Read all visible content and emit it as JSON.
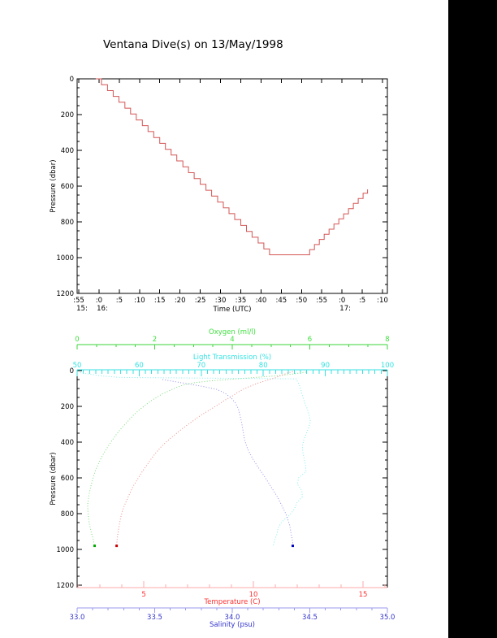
{
  "title": "Ventana Dive(s) on 13/May/1998",
  "page": {
    "background": "#ffffff",
    "right_strip_color": "#000000",
    "axis_black": "#000000"
  },
  "chart_data": [
    {
      "type": "line",
      "name": "dive-depth-vs-time",
      "xlabel": "Time (UTC)",
      "ylabel": "Pressure (dbar)",
      "grid": false,
      "legend": "none",
      "line_style": "steps",
      "line_color": "#d45555",
      "x_domain_minutes_after_1500": [
        54.6,
        131.2
      ],
      "x_ticks": [
        {
          "m": 55,
          "label": ":55",
          "hour": "15:"
        },
        {
          "m": 60,
          "label": ":0",
          "hour": "16:"
        },
        {
          "m": 65,
          "label": ":5"
        },
        {
          "m": 70,
          "label": ":10"
        },
        {
          "m": 75,
          "label": ":15"
        },
        {
          "m": 80,
          "label": ":20"
        },
        {
          "m": 85,
          "label": ":25"
        },
        {
          "m": 90,
          "label": ":30"
        },
        {
          "m": 95,
          "label": ":35"
        },
        {
          "m": 100,
          "label": ":40"
        },
        {
          "m": 105,
          "label": ":45"
        },
        {
          "m": 110,
          "label": ":50"
        },
        {
          "m": 115,
          "label": ":55"
        },
        {
          "m": 120,
          "label": ":0",
          "hour": "17:"
        },
        {
          "m": 125,
          "label": ":5"
        },
        {
          "m": 130,
          "label": ":10"
        }
      ],
      "ylim": [
        0,
        1200
      ],
      "y_ticks": [
        0,
        200,
        400,
        600,
        800,
        1000,
        1200
      ],
      "y_minor_step": 50,
      "series": [
        {
          "name": "pressure_profile",
          "color": "#d45555",
          "points_minute_dbar": [
            [
              59.2,
              0
            ],
            [
              60.6,
              33
            ],
            [
              62.1,
              66
            ],
            [
              63.5,
              98
            ],
            [
              64.9,
              131
            ],
            [
              66.4,
              164
            ],
            [
              67.8,
              197
            ],
            [
              69.2,
              230
            ],
            [
              70.7,
              262
            ],
            [
              72.1,
              295
            ],
            [
              73.5,
              328
            ],
            [
              75.0,
              361
            ],
            [
              76.4,
              394
            ],
            [
              77.8,
              426
            ],
            [
              79.2,
              459
            ],
            [
              80.7,
              492
            ],
            [
              82.1,
              525
            ],
            [
              83.5,
              558
            ],
            [
              85.0,
              590
            ],
            [
              86.4,
              623
            ],
            [
              87.8,
              656
            ],
            [
              89.3,
              689
            ],
            [
              90.7,
              722
            ],
            [
              92.1,
              754
            ],
            [
              93.5,
              787
            ],
            [
              95.0,
              820
            ],
            [
              96.4,
              853
            ],
            [
              97.8,
              886
            ],
            [
              99.3,
              918
            ],
            [
              100.7,
              951
            ],
            [
              102.1,
              984
            ],
            [
              110.8,
              984
            ],
            [
              112.0,
              955
            ],
            [
              113.2,
              927
            ],
            [
              114.4,
              898
            ],
            [
              115.6,
              869
            ],
            [
              116.8,
              841
            ],
            [
              118.0,
              812
            ],
            [
              119.2,
              783
            ],
            [
              120.4,
              755
            ],
            [
              121.6,
              726
            ],
            [
              122.8,
              697
            ],
            [
              124.0,
              669
            ],
            [
              125.2,
              640
            ],
            [
              126.3,
              618
            ]
          ]
        }
      ]
    },
    {
      "type": "line",
      "name": "ctd-profiles-vs-pressure",
      "ylabel": "Pressure (dbar)",
      "grid": false,
      "legend": "none",
      "ylim": [
        0,
        1200
      ],
      "y_ticks": [
        0,
        200,
        400,
        600,
        800,
        1000,
        1200
      ],
      "y_minor_step": 50,
      "axes": [
        {
          "id": "oxygen",
          "label": "Oxygen (ml/l)",
          "axis_color": "#3bd43b",
          "label_color": "#3fe03f",
          "domain": [
            0,
            8
          ],
          "minor_step": 0.5,
          "major_ticks": [
            {
              "v": 0,
              "label": "0"
            },
            {
              "v": 2,
              "label": "2"
            },
            {
              "v": 4,
              "label": "4"
            },
            {
              "v": 6,
              "label": "6"
            },
            {
              "v": 8,
              "label": "8"
            }
          ]
        },
        {
          "id": "light_transmission",
          "label": "Light Transmission (%)",
          "axis_color": "#35e2e2",
          "label_color": "#35e2e2",
          "domain": [
            50,
            100
          ],
          "minor_step": 1,
          "major_ticks": [
            {
              "v": 50,
              "label": "50"
            },
            {
              "v": 60,
              "label": "60"
            },
            {
              "v": 70,
              "label": "70"
            },
            {
              "v": 80,
              "label": "80"
            },
            {
              "v": 90,
              "label": "90"
            },
            {
              "v": 100,
              "label": "100"
            }
          ]
        },
        {
          "id": "temperature",
          "label": "Temperature (C)",
          "axis_color": "#ffaaaa",
          "label_color": "#ff3030",
          "domain": [
            1.96,
            16.11
          ],
          "minor_step": 1,
          "major_ticks": [
            {
              "v": 5,
              "label": "5"
            },
            {
              "v": 10,
              "label": "10"
            },
            {
              "v": 15,
              "label": "15"
            }
          ]
        },
        {
          "id": "salinity",
          "label": "Salinity (psu)",
          "axis_color": "#9a9aec",
          "label_color": "#3232cc",
          "domain": [
            33,
            35
          ],
          "minor_step": 0.1,
          "major_ticks": [
            {
              "v": 33,
              "label": "33.0"
            },
            {
              "v": 33.5,
              "label": "33.5"
            },
            {
              "v": 34,
              "label": "34.0"
            },
            {
              "v": 34.5,
              "label": "34.5"
            },
            {
              "v": 35,
              "label": "35.0"
            }
          ]
        }
      ],
      "series": [
        {
          "name": "oxygen",
          "axis": "oxygen",
          "color": "#7cdc7c",
          "end_marker": true,
          "marker_color": "#00aa00",
          "points_value_dbar": [
            [
              5.9,
              8
            ],
            [
              5.6,
              18
            ],
            [
              5.2,
              28
            ],
            [
              4.6,
              38
            ],
            [
              4.0,
              48
            ],
            [
              3.4,
              58
            ],
            [
              3.0,
              68
            ],
            [
              2.75,
              80
            ],
            [
              2.55,
              95
            ],
            [
              2.4,
              110
            ],
            [
              2.2,
              130
            ],
            [
              2.05,
              150
            ],
            [
              1.9,
              170
            ],
            [
              1.75,
              195
            ],
            [
              1.6,
              220
            ],
            [
              1.45,
              250
            ],
            [
              1.3,
              285
            ],
            [
              1.15,
              320
            ],
            [
              1.0,
              360
            ],
            [
              0.87,
              400
            ],
            [
              0.75,
              440
            ],
            [
              0.64,
              480
            ],
            [
              0.55,
              520
            ],
            [
              0.47,
              560
            ],
            [
              0.41,
              600
            ],
            [
              0.35,
              650
            ],
            [
              0.3,
              700
            ],
            [
              0.27,
              750
            ],
            [
              0.28,
              800
            ],
            [
              0.31,
              850
            ],
            [
              0.36,
              900
            ],
            [
              0.42,
              950
            ],
            [
              0.45,
              980
            ]
          ]
        },
        {
          "name": "light_transmission",
          "axis": "light_transmission",
          "color": "#86ecec",
          "end_marker": false,
          "marker_color": "#00cccc",
          "points_value_dbar": [
            [
              50.5,
              12
            ],
            [
              52,
              20
            ],
            [
              54,
              30
            ],
            [
              57,
              38
            ],
            [
              70,
              42
            ],
            [
              85.3,
              46
            ],
            [
              85.5,
              60
            ],
            [
              85.8,
              80
            ],
            [
              86,
              100
            ],
            [
              86.2,
              125
            ],
            [
              86.4,
              150
            ],
            [
              86.7,
              180
            ],
            [
              87.1,
              215
            ],
            [
              87.4,
              250
            ],
            [
              87.6,
              285
            ],
            [
              87.3,
              320
            ],
            [
              86.9,
              355
            ],
            [
              86.5,
              390
            ],
            [
              86.3,
              425
            ],
            [
              86.4,
              460
            ],
            [
              86.6,
              495
            ],
            [
              86.8,
              530
            ],
            [
              86.9,
              565
            ],
            [
              85.7,
              600
            ],
            [
              85.5,
              635
            ],
            [
              86.2,
              670
            ],
            [
              86.3,
              705
            ],
            [
              85.4,
              740
            ],
            [
              85,
              775
            ],
            [
              84.2,
              810
            ],
            [
              83,
              845
            ],
            [
              82.4,
              880
            ],
            [
              82.2,
              915
            ],
            [
              81.8,
              950
            ],
            [
              81.6,
              980
            ]
          ]
        },
        {
          "name": "temperature",
          "axis": "temperature",
          "color": "#ee8c8c",
          "end_marker": true,
          "marker_color": "#cc0000",
          "points_value_dbar": [
            [
              11.8,
              5
            ],
            [
              11.6,
              12
            ],
            [
              11.3,
              25
            ],
            [
              11.0,
              40
            ],
            [
              10.6,
              55
            ],
            [
              10.2,
              70
            ],
            [
              9.9,
              85
            ],
            [
              9.6,
              100
            ],
            [
              9.3,
              120
            ],
            [
              9.0,
              145
            ],
            [
              8.7,
              165
            ],
            [
              8.4,
              190
            ],
            [
              8.0,
              220
            ],
            [
              7.6,
              250
            ],
            [
              7.2,
              285
            ],
            [
              6.8,
              320
            ],
            [
              6.45,
              355
            ],
            [
              6.1,
              390
            ],
            [
              5.8,
              425
            ],
            [
              5.55,
              460
            ],
            [
              5.3,
              500
            ],
            [
              5.1,
              535
            ],
            [
              4.9,
              570
            ],
            [
              4.7,
              610
            ],
            [
              4.5,
              650
            ],
            [
              4.35,
              690
            ],
            [
              4.2,
              730
            ],
            [
              4.05,
              775
            ],
            [
              3.95,
              820
            ],
            [
              3.88,
              865
            ],
            [
              3.82,
              910
            ],
            [
              3.78,
              950
            ],
            [
              3.76,
              980
            ]
          ]
        },
        {
          "name": "salinity",
          "axis": "salinity",
          "color": "#9292ea",
          "end_marker": true,
          "marker_color": "#0000bb",
          "points_value_dbar": [
            [
              33.55,
              50
            ],
            [
              33.62,
              60
            ],
            [
              33.72,
              75
            ],
            [
              33.82,
              90
            ],
            [
              33.9,
              105
            ],
            [
              33.95,
              125
            ],
            [
              33.99,
              150
            ],
            [
              34.02,
              180
            ],
            [
              34.04,
              215
            ],
            [
              34.05,
              250
            ],
            [
              34.06,
              290
            ],
            [
              34.07,
              340
            ],
            [
              34.08,
              390
            ],
            [
              34.1,
              440
            ],
            [
              34.13,
              490
            ],
            [
              34.17,
              545
            ],
            [
              34.21,
              595
            ],
            [
              34.25,
              650
            ],
            [
              34.29,
              705
            ],
            [
              34.32,
              755
            ],
            [
              34.35,
              810
            ],
            [
              34.37,
              865
            ],
            [
              34.38,
              915
            ],
            [
              34.39,
              960
            ],
            [
              34.39,
              980
            ]
          ]
        }
      ]
    }
  ]
}
